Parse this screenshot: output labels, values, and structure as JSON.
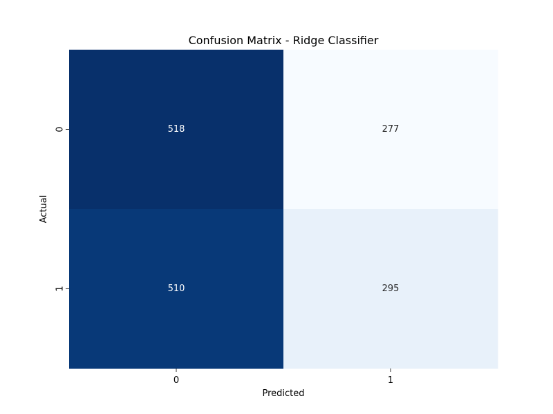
{
  "chart_data": {
    "type": "heatmap",
    "title": "Confusion Matrix - Ridge Classifier",
    "xlabel": "Predicted",
    "ylabel": "Actual",
    "x_categories": [
      "0",
      "1"
    ],
    "y_categories": [
      "0",
      "1"
    ],
    "values": [
      [
        518,
        277
      ],
      [
        510,
        295
      ]
    ],
    "colormap": "Blues",
    "colorbar": false,
    "colors": {
      "min": "#f7fbff",
      "max": "#08306b",
      "text_dark": "#262626",
      "text_light": "#ffffff"
    }
  }
}
